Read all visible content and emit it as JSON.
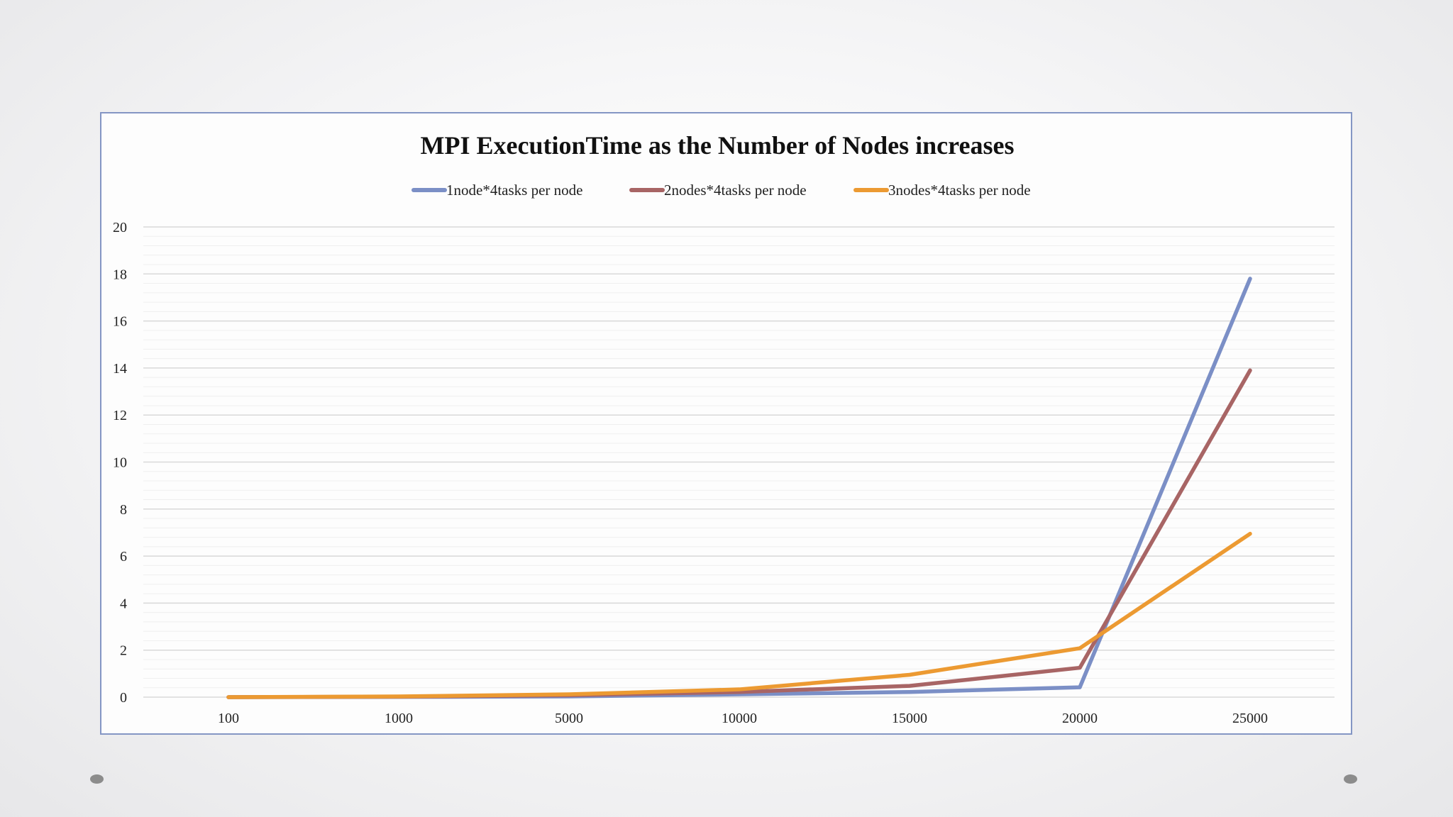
{
  "chart_data": {
    "type": "line",
    "title": "MPI ExecutionTime as the Number of Nodes increases",
    "xlabel": "",
    "ylabel": "",
    "categories": [
      "100",
      "1000",
      "5000",
      "10000",
      "15000",
      "20000",
      "25000"
    ],
    "ylim": [
      0,
      20
    ],
    "yticks": [
      0,
      2,
      4,
      6,
      8,
      10,
      12,
      14,
      16,
      18,
      20
    ],
    "legend_position": "top-center",
    "grid": true,
    "series": [
      {
        "name": "1node*4tasks per node",
        "color": "#7b8fc6",
        "values": [
          0.0,
          0.01,
          0.03,
          0.12,
          0.22,
          0.42,
          17.8
        ]
      },
      {
        "name": "2nodes*4tasks per node",
        "color": "#a86565",
        "values": [
          0.0,
          0.02,
          0.08,
          0.22,
          0.48,
          1.25,
          13.9
        ]
      },
      {
        "name": "3nodes*4tasks per node",
        "color": "#ec9a32",
        "values": [
          0.0,
          0.03,
          0.12,
          0.33,
          0.95,
          2.08,
          6.95
        ]
      }
    ]
  }
}
